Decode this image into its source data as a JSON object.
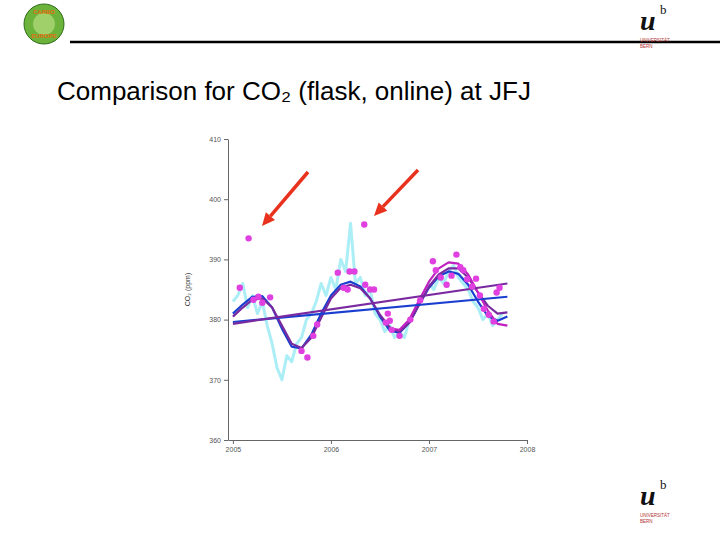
{
  "page": {
    "left_logo": [
      "CARBO",
      "EUROPE"
    ],
    "logo_mark": "u",
    "logo_superscript": "b",
    "logo_text": [
      "UNIVERSITÄT",
      "BERN"
    ]
  },
  "chart_data": {
    "type": "scatter",
    "title": "Comparison for CO₂ (flask, online) at JFJ",
    "y_label": "CO₂ (ppm)",
    "xlim": [
      2004.95,
      2008
    ],
    "ylim": [
      360,
      410
    ],
    "xticks": [
      2005,
      2006,
      2007,
      2008
    ],
    "yticks": [
      360,
      370,
      380,
      390,
      400,
      410
    ],
    "series": [
      {
        "type": "line",
        "color": "#8fe8f2",
        "line_style": "solid",
        "x": [
          2005.0,
          2005.05,
          2005.1,
          2005.15,
          2005.2,
          2005.25,
          2005.3,
          2005.35,
          2005.4,
          2005.45,
          2005.5,
          2005.55,
          2005.6,
          2005.65,
          2005.7,
          2005.75,
          2005.8,
          2005.85,
          2005.9,
          2005.95,
          2006.0,
          2006.05,
          2006.1,
          2006.15,
          2006.2,
          2006.25,
          2006.3,
          2006.35,
          2006.4,
          2006.45,
          2006.5,
          2006.55,
          2006.6,
          2006.65,
          2006.7,
          2006.75,
          2006.8,
          2006.85,
          2006.9,
          2006.95,
          2007.0,
          2007.05,
          2007.1,
          2007.15,
          2007.2,
          2007.25,
          2007.3,
          2007.35,
          2007.4,
          2007.45,
          2007.5,
          2007.55,
          2007.6,
          2007.65,
          2007.7,
          2007.75
        ],
        "values": [
          383,
          384,
          386,
          382,
          384,
          381,
          383,
          379,
          376,
          372,
          370,
          374,
          373,
          376,
          377,
          380,
          381,
          383,
          386,
          384,
          387,
          385,
          390,
          388,
          396,
          386,
          387,
          384,
          385,
          381,
          380,
          378,
          379,
          377,
          378,
          377,
          380,
          381,
          383,
          384,
          386,
          385,
          387,
          386,
          388,
          389,
          387,
          386,
          385,
          383,
          382,
          380,
          381,
          379,
          380,
          381
        ]
      },
      {
        "type": "line",
        "color": "#1a3fd0",
        "line_style": "solid",
        "x": [
          2005.0,
          2005.1,
          2005.2,
          2005.3,
          2005.4,
          2005.5,
          2005.6,
          2005.7,
          2005.8,
          2005.9,
          2006.0,
          2006.1,
          2006.2,
          2006.3,
          2006.4,
          2006.5,
          2006.6,
          2006.7,
          2006.8,
          2006.9,
          2007.0,
          2007.1,
          2007.2,
          2007.3,
          2007.4,
          2007.5,
          2007.6,
          2007.7,
          2007.8
        ],
        "values": [
          381.0,
          382.5,
          383.8,
          383.9,
          382.0,
          378.5,
          375.5,
          375.2,
          377.5,
          381.0,
          384.0,
          385.8,
          386.3,
          385.5,
          383.5,
          380.5,
          378.2,
          377.8,
          379.5,
          382.5,
          385.3,
          387.2,
          388.0,
          387.6,
          385.8,
          383.0,
          380.6,
          379.8,
          380.5
        ]
      },
      {
        "type": "line",
        "color": "#7a2aa0",
        "line_style": "solid",
        "x": [
          2005.0,
          2005.1,
          2005.2,
          2005.3,
          2005.4,
          2005.5,
          2005.6,
          2005.7,
          2005.8,
          2005.9,
          2006.0,
          2006.1,
          2006.2,
          2006.3,
          2006.4,
          2006.5,
          2006.6,
          2006.7,
          2006.8,
          2006.9,
          2007.0,
          2007.1,
          2007.2,
          2007.3,
          2007.4,
          2007.5,
          2007.6,
          2007.7,
          2007.8
        ],
        "values": [
          380.5,
          382.0,
          383.3,
          383.5,
          382.0,
          379.0,
          376.0,
          375.3,
          377.0,
          380.3,
          383.5,
          385.3,
          385.8,
          385.2,
          383.5,
          380.8,
          378.7,
          378.0,
          379.5,
          382.5,
          385.5,
          387.5,
          388.5,
          388.5,
          387.0,
          384.5,
          382.3,
          381.0,
          381.2
        ]
      },
      {
        "type": "line",
        "color": "#c020c0",
        "line_style": "solid",
        "x": [
          2006.6,
          2006.7,
          2006.8,
          2006.9,
          2007.0,
          2007.1,
          2007.2,
          2007.3,
          2007.4,
          2007.5,
          2007.6,
          2007.7,
          2007.8
        ],
        "values": [
          378.5,
          378.3,
          380.0,
          383.2,
          386.3,
          388.5,
          389.5,
          389.3,
          387.5,
          384.5,
          381.5,
          379.3,
          379.0
        ]
      },
      {
        "type": "line",
        "color": "#1a3fd0",
        "line_style": "solid",
        "x": [
          2005.0,
          2007.8
        ],
        "values": [
          379.6,
          383.8
        ]
      },
      {
        "type": "line",
        "color": "#7a2aa0",
        "line_style": "solid",
        "x": [
          2005.0,
          2007.8
        ],
        "values": [
          379.3,
          386.0
        ]
      },
      {
        "type": "scatter",
        "color": "#e040e0",
        "marker": "circle",
        "x": [
          2005.07,
          2005.16,
          2005.21,
          2005.26,
          2005.3,
          2005.38,
          2005.7,
          2005.76,
          2005.82,
          2005.86,
          2006.07,
          2006.13,
          2006.17,
          2006.19,
          2006.24,
          2006.34,
          2006.35,
          2006.4,
          2006.44,
          2006.56,
          2006.58,
          2006.6,
          2006.62,
          2006.7,
          2006.81,
          2006.91,
          2007.04,
          2007.07,
          2007.12,
          2007.18,
          2007.23,
          2007.28,
          2007.32,
          2007.35,
          2007.39,
          2007.44,
          2007.48,
          2007.52,
          2007.56,
          2007.61,
          2007.66,
          2007.69,
          2007.72
        ],
        "values": [
          385.3,
          393.5,
          383.3,
          383.8,
          382.8,
          383.7,
          374.8,
          373.7,
          377.3,
          379.2,
          387.8,
          385.3,
          385.0,
          388.0,
          388.0,
          395.8,
          385.8,
          385.0,
          385.0,
          379.5,
          381.0,
          379.8,
          378.3,
          377.3,
          380.0,
          383.2,
          389.7,
          388.2,
          387.0,
          385.8,
          387.3,
          390.8,
          388.7,
          388.2,
          386.7,
          385.5,
          386.8,
          384.0,
          381.8,
          380.8,
          379.7,
          384.5,
          385.3
        ]
      }
    ]
  }
}
